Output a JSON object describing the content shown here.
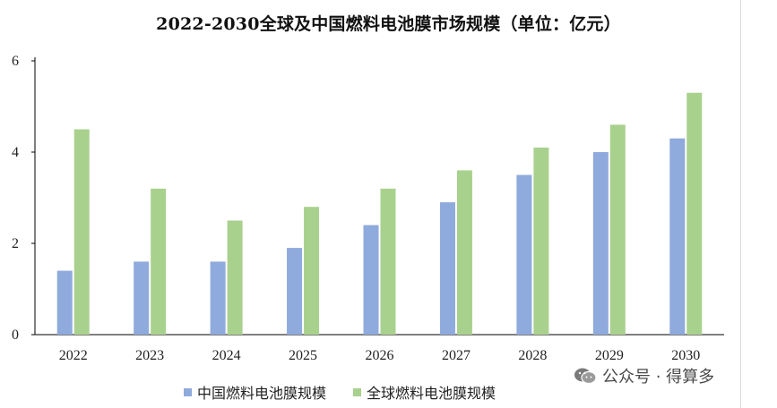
{
  "chart_data": {
    "type": "bar",
    "title": "2022-2030全球及中国燃料电池膜市场规模（单位：亿元）",
    "categories": [
      "2022",
      "2023",
      "2024",
      "2025",
      "2026",
      "2027",
      "2028",
      "2029",
      "2030"
    ],
    "series": [
      {
        "name": "中国燃料电池膜规模",
        "color": "#8faadc",
        "values": [
          1.4,
          1.6,
          1.6,
          1.9,
          2.4,
          2.9,
          3.5,
          4.0,
          4.3
        ]
      },
      {
        "name": "全球燃料电池膜规模",
        "color": "#a9d18e",
        "values": [
          4.5,
          3.2,
          2.5,
          2.8,
          3.2,
          3.6,
          4.1,
          4.6,
          5.3
        ]
      }
    ],
    "ylim": [
      0,
      6
    ],
    "yticks": [
      0,
      2,
      4,
      6
    ],
    "grid": false,
    "legend_position": "bottom"
  },
  "watermark": {
    "text": "公众号 · 得算多",
    "icon": "wechat-icon"
  }
}
